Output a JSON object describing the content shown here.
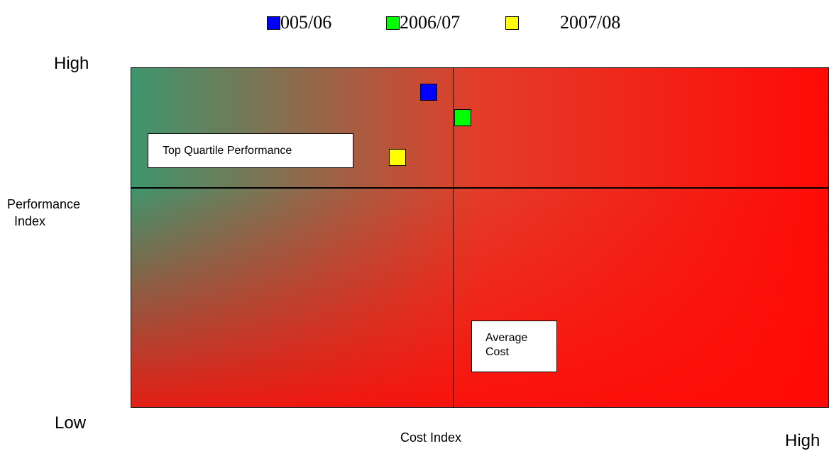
{
  "chart_data": {
    "type": "scatter",
    "xlabel": "Cost Index",
    "ylabel": "Performance Index",
    "x_low_label": "",
    "x_high_label": "High",
    "y_high_label": "High",
    "y_low_label": "Low",
    "xlim": [
      0,
      100
    ],
    "ylim": [
      0,
      100
    ],
    "quadrant_divider_x": 46,
    "quadrant_divider_y": 65,
    "annotations": {
      "top_quartile": "Top Quartile Performance",
      "average_cost": "Average\nCost"
    },
    "legend_placement": "top",
    "series": [
      {
        "name": "005/06",
        "color": "#0000ff",
        "x": [
          42.6
        ],
        "y": [
          93.0
        ]
      },
      {
        "name": "2006/07",
        "color": "#00ff00",
        "x": [
          47.5
        ],
        "y": [
          85.5
        ]
      },
      {
        "name": "2007/08",
        "color": "#ffff00",
        "x": [
          38.1
        ],
        "y": [
          73.8
        ]
      }
    ]
  }
}
